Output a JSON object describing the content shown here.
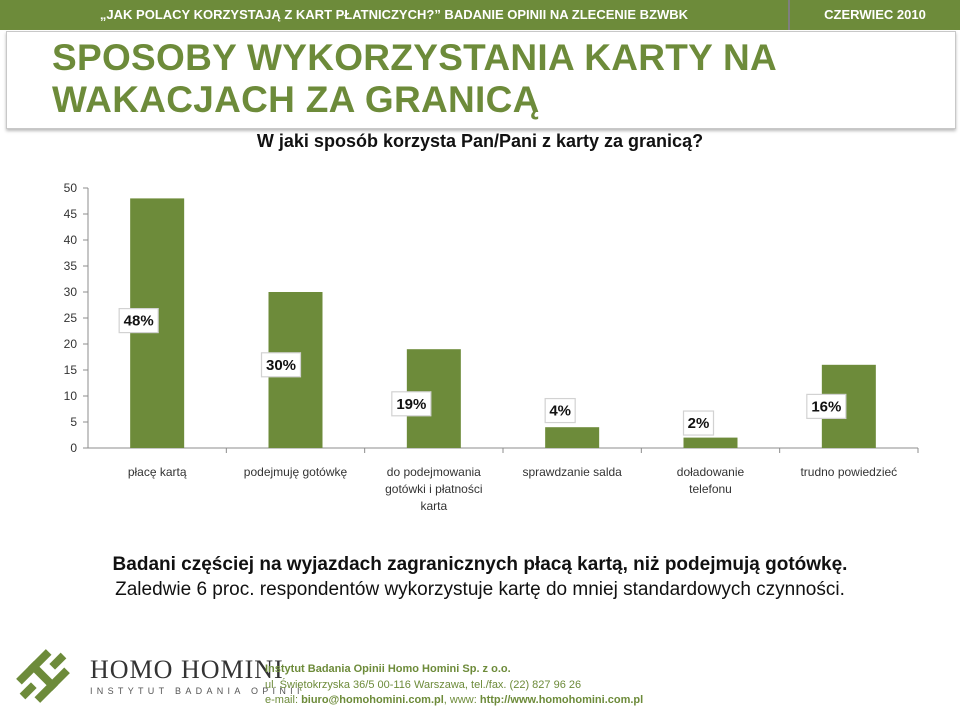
{
  "header": {
    "left_text": "„JAK POLACY KORZYSTAJĄ Z KART PŁATNICZYCH?” BADANIE OPINII NA ZLECENIE BZWBK",
    "right_text": "CZERWIEC 2010"
  },
  "title": {
    "line1": "SPOSOBY WYKORZYSTANIA KARTY NA",
    "line2": "WAKACJACH ZA GRANICĄ"
  },
  "question": "W jaki sposób korzysta Pan/Pani z karty za granicą?",
  "chart_data": {
    "type": "bar",
    "categories": [
      [
        "płacę kartą"
      ],
      [
        "podejmuję gotówkę"
      ],
      [
        "do podejmowania",
        "gotówki i płatności",
        "karta"
      ],
      [
        "sprawdzanie salda"
      ],
      [
        "doładowanie",
        "telefonu"
      ],
      [
        "trudno powiedzieć"
      ]
    ],
    "values": [
      48,
      30,
      19,
      4,
      2,
      16
    ],
    "data_labels": [
      "48%",
      "30%",
      "19%",
      "4%",
      "2%",
      "16%"
    ],
    "ylim": [
      0,
      50
    ],
    "yticks": [
      "0",
      "5",
      "10",
      "15",
      "20",
      "25",
      "30",
      "35",
      "40",
      "45",
      "50"
    ],
    "bar_color": "#6d8b3a",
    "grid": false
  },
  "summary": {
    "line1": "Badani częściej na wyjazdach zagranicznych płacą kartą, niż podejmują gotówkę.",
    "line2": "Zaledwie 6 proc. respondentów wykorzystuje kartę do mniej standardowych czynności."
  },
  "footer": {
    "brand": "HOMO HOMINI",
    "brand_sub": "INSTYTUT BADANIA OPINII",
    "org": "Instytut Badania Opinii Homo Homini Sp. z o.o.",
    "address": "ul. Świętokrzyska 36/5 00-116 Warszawa, tel./fax. (22) 827 96 26",
    "email_label": "e-mail: ",
    "email": "biuro@homohomini.com.pl",
    "www_label": ", www: ",
    "www": "http://www.homohomini.com.pl"
  },
  "colors": {
    "accent": "#6d8b3a"
  }
}
